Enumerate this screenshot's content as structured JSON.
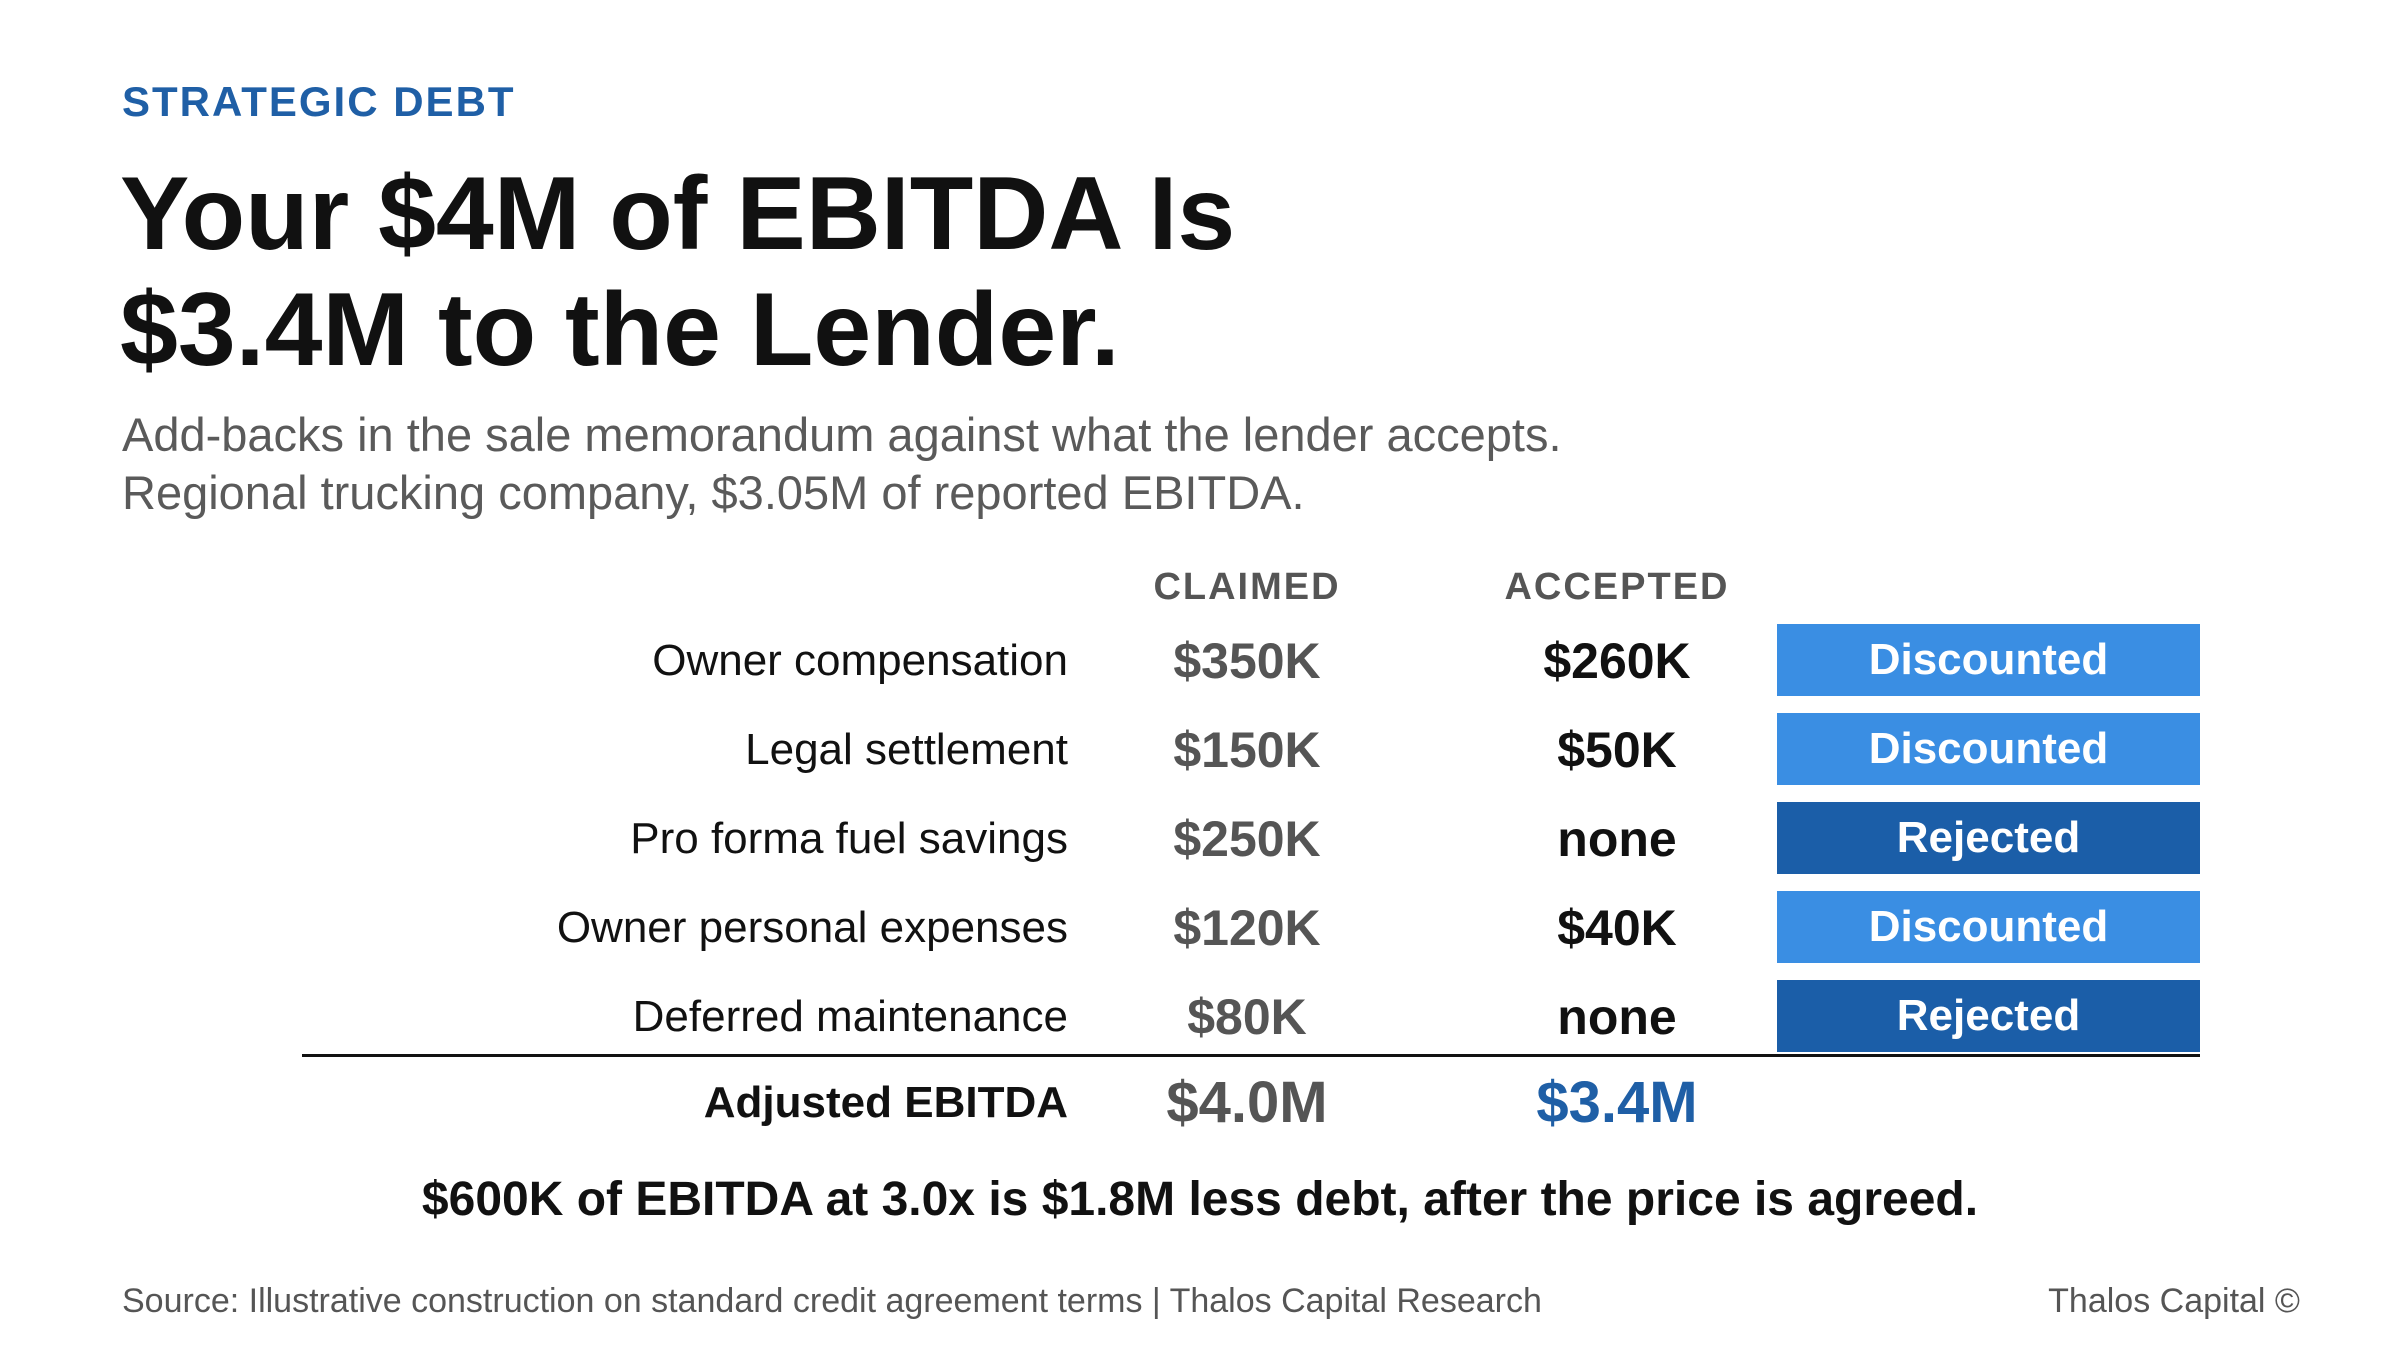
{
  "eyebrow": "STRATEGIC DEBT",
  "title": {
    "line1": "Your $4M of EBITDA Is",
    "line2": "$3.4M to the Lender."
  },
  "subtitle": {
    "line1": "Add-backs in the sale memorandum against what the lender accepts.",
    "line2": "Regional trucking company, $3.05M of reported EBITDA."
  },
  "table": {
    "columns": {
      "claimed": "CLAIMED",
      "accepted": "ACCEPTED"
    },
    "rows": [
      {
        "label": "Owner compensation",
        "claimed": "$350K",
        "accepted": "$260K",
        "status": "Discounted"
      },
      {
        "label": "Legal settlement",
        "claimed": "$150K",
        "accepted": "$50K",
        "status": "Discounted"
      },
      {
        "label": "Pro forma fuel savings",
        "claimed": "$250K",
        "accepted": "none",
        "status": "Rejected"
      },
      {
        "label": "Owner personal expenses",
        "claimed": "$120K",
        "accepted": "$40K",
        "status": "Discounted"
      },
      {
        "label": "Deferred maintenance",
        "claimed": "$80K",
        "accepted": "none",
        "status": "Rejected"
      }
    ],
    "total": {
      "label": "Adjusted EBITDA",
      "claimed": "$4.0M",
      "accepted": "$3.4M"
    }
  },
  "colors": {
    "accent": "#1f5fa6",
    "discounted": "#3a8ee3",
    "rejected": "#1b5ea8"
  },
  "takeaway": "$600K of EBITDA at 3.0x is $1.8M less debt, after the price is agreed.",
  "footer": {
    "source": "Source: Illustrative construction on standard credit agreement terms | Thalos Capital Research",
    "brand": "Thalos Capital ©"
  }
}
